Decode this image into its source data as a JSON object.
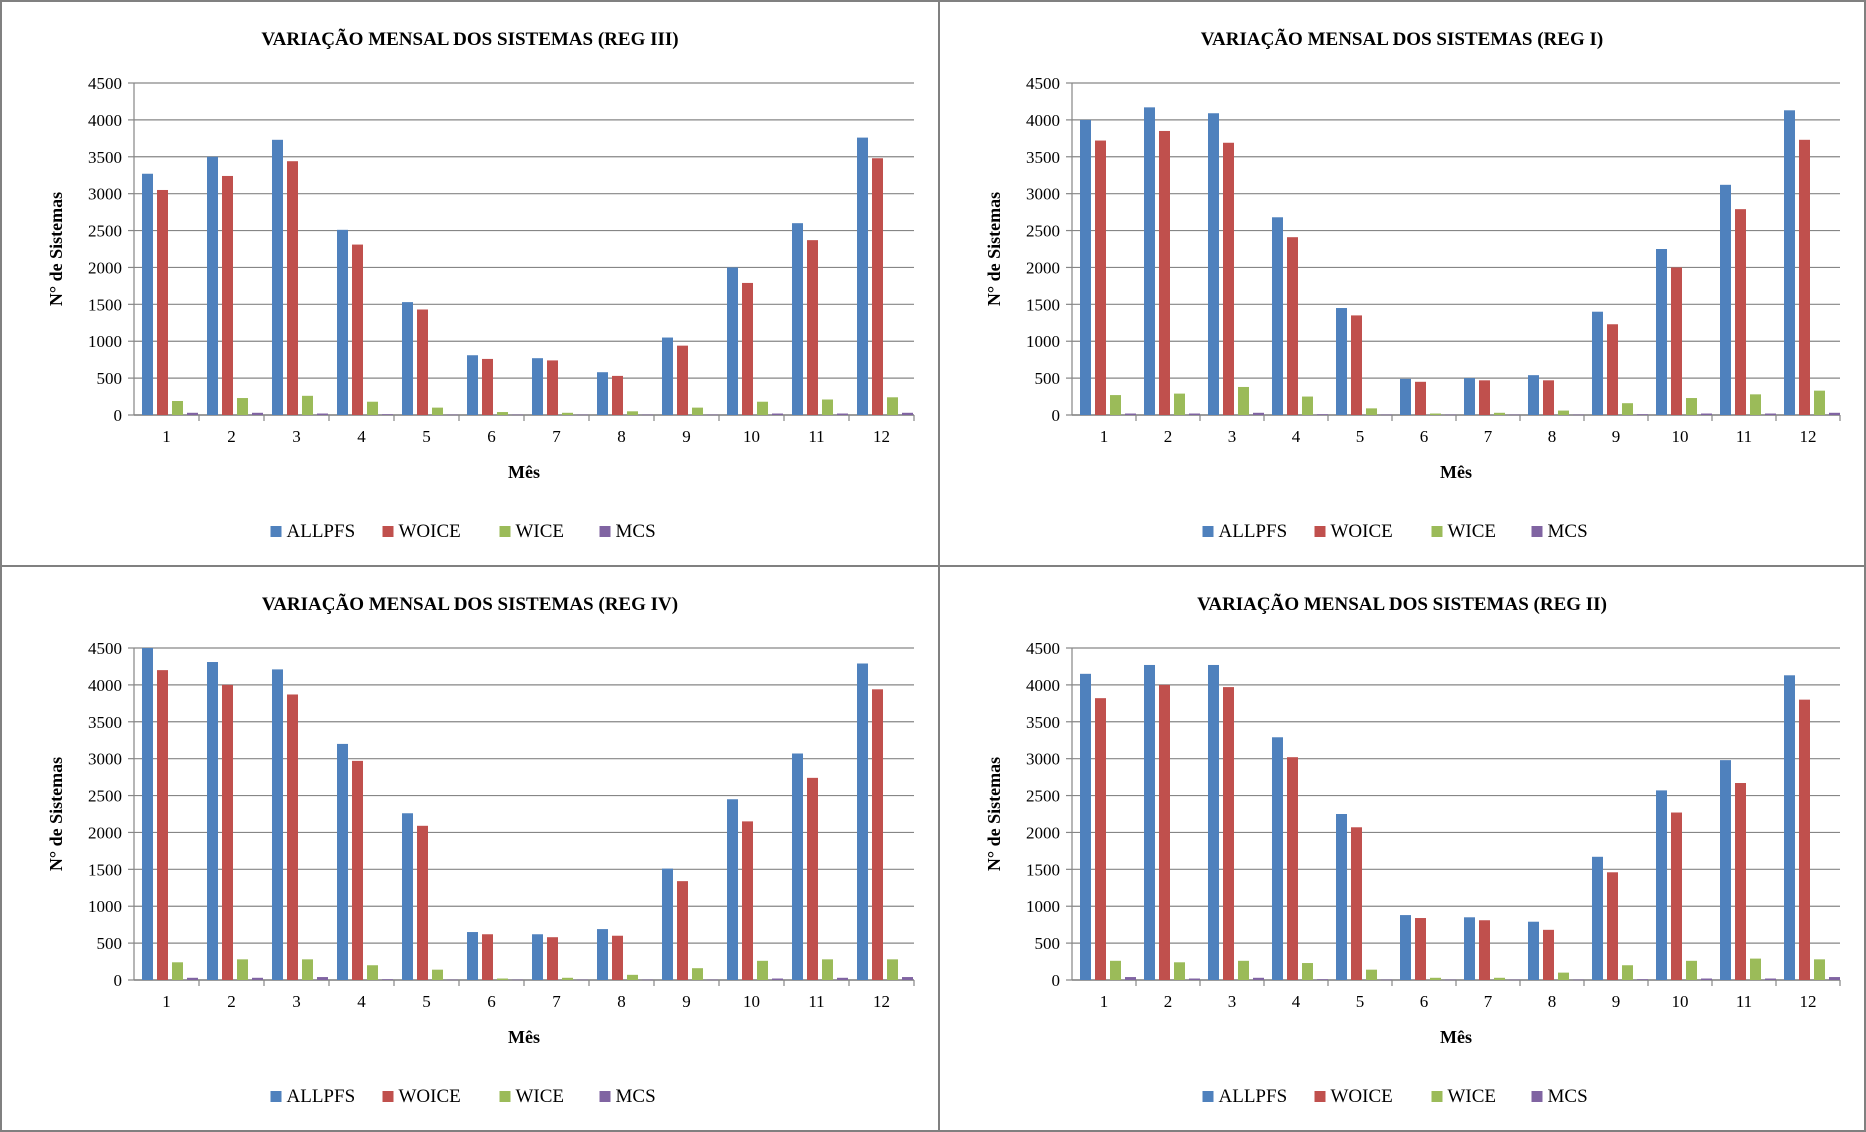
{
  "legend_labels": [
    "ALLPFS",
    "WOICE",
    "WICE",
    "MCS"
  ],
  "series_colors": [
    "#4f81bd",
    "#c0504d",
    "#9bbb59",
    "#8064a2"
  ],
  "chart_data": [
    {
      "type": "bar",
      "title": "VARIAÇÃO MENSAL DOS SISTEMAS (REG III)",
      "xlabel": "Mês",
      "ylabel": "N° de Sistemas",
      "ylim": [
        0,
        4500
      ],
      "yticks": [
        "0",
        "500",
        "1000",
        "1500",
        "2000",
        "2500",
        "3000",
        "3500",
        "4000",
        "4500"
      ],
      "categories": [
        "1",
        "2",
        "3",
        "4",
        "5",
        "6",
        "7",
        "8",
        "9",
        "10",
        "11",
        "12"
      ],
      "grid": true,
      "legend_position": "bottom",
      "series": [
        {
          "name": "ALLPFS",
          "values": [
            3270,
            3500,
            3730,
            2510,
            1530,
            810,
            770,
            580,
            1050,
            2000,
            2600,
            3760
          ]
        },
        {
          "name": "WOICE",
          "values": [
            3050,
            3240,
            3440,
            2310,
            1430,
            760,
            740,
            530,
            940,
            1790,
            2370,
            3480
          ]
        },
        {
          "name": "WICE",
          "values": [
            190,
            230,
            260,
            180,
            100,
            40,
            30,
            50,
            100,
            180,
            210,
            240
          ]
        },
        {
          "name": "MCS",
          "values": [
            30,
            30,
            20,
            10,
            5,
            5,
            5,
            5,
            5,
            20,
            20,
            30
          ]
        }
      ]
    },
    {
      "type": "bar",
      "title": "VARIAÇÃO MENSAL DOS SISTEMAS (REG I)",
      "xlabel": "Mês",
      "ylabel": "N° de Sistemas",
      "ylim": [
        0,
        4500
      ],
      "yticks": [
        "0",
        "500",
        "1000",
        "1500",
        "2000",
        "2500",
        "3000",
        "3500",
        "4000",
        "4500"
      ],
      "categories": [
        "1",
        "2",
        "3",
        "4",
        "5",
        "6",
        "7",
        "8",
        "9",
        "10",
        "11",
        "12"
      ],
      "grid": true,
      "legend_position": "bottom",
      "series": [
        {
          "name": "ALLPFS",
          "values": [
            4000,
            4170,
            4090,
            2680,
            1450,
            490,
            500,
            540,
            1400,
            2250,
            3120,
            4130
          ]
        },
        {
          "name": "WOICE",
          "values": [
            3720,
            3850,
            3690,
            2410,
            1350,
            450,
            470,
            470,
            1230,
            2000,
            2790,
            3730
          ]
        },
        {
          "name": "WICE",
          "values": [
            270,
            290,
            380,
            250,
            90,
            20,
            30,
            60,
            160,
            230,
            280,
            330
          ]
        },
        {
          "name": "MCS",
          "values": [
            20,
            20,
            30,
            10,
            5,
            5,
            5,
            5,
            10,
            20,
            20,
            30
          ]
        }
      ]
    },
    {
      "type": "bar",
      "title": "VARIAÇÃO MENSAL DOS SISTEMAS (REG IV)",
      "xlabel": "Mês",
      "ylabel": "N° de Sistemas",
      "ylim": [
        0,
        4500
      ],
      "yticks": [
        "0",
        "500",
        "1000",
        "1500",
        "2000",
        "2500",
        "3000",
        "3500",
        "4000",
        "4500"
      ],
      "categories": [
        "1",
        "2",
        "3",
        "4",
        "5",
        "6",
        "7",
        "8",
        "9",
        "10",
        "11",
        "12"
      ],
      "grid": true,
      "legend_position": "bottom",
      "series": [
        {
          "name": "ALLPFS",
          "values": [
            4500,
            4310,
            4210,
            3200,
            2260,
            650,
            620,
            690,
            1510,
            2450,
            3070,
            4290
          ]
        },
        {
          "name": "WOICE",
          "values": [
            4200,
            4000,
            3870,
            2970,
            2090,
            620,
            580,
            600,
            1340,
            2150,
            2740,
            3940
          ]
        },
        {
          "name": "WICE",
          "values": [
            240,
            280,
            280,
            200,
            140,
            20,
            30,
            70,
            160,
            260,
            280,
            280
          ]
        },
        {
          "name": "MCS",
          "values": [
            30,
            30,
            40,
            10,
            5,
            5,
            5,
            5,
            5,
            20,
            30,
            40
          ]
        }
      ]
    },
    {
      "type": "bar",
      "title": "VARIAÇÃO MENSAL DOS SISTEMAS (REG II)",
      "xlabel": "Mês",
      "ylabel": "N° de Sistemas",
      "ylim": [
        0,
        4500
      ],
      "yticks": [
        "0",
        "500",
        "1000",
        "1500",
        "2000",
        "2500",
        "3000",
        "3500",
        "4000",
        "4500"
      ],
      "categories": [
        "1",
        "2",
        "3",
        "4",
        "5",
        "6",
        "7",
        "8",
        "9",
        "10",
        "11",
        "12"
      ],
      "grid": true,
      "legend_position": "bottom",
      "series": [
        {
          "name": "ALLPFS",
          "values": [
            4150,
            4270,
            4270,
            3290,
            2250,
            880,
            850,
            790,
            1670,
            2570,
            2980,
            4130
          ]
        },
        {
          "name": "WOICE",
          "values": [
            3820,
            4000,
            3970,
            3020,
            2070,
            840,
            810,
            680,
            1460,
            2270,
            2670,
            3800
          ]
        },
        {
          "name": "WICE",
          "values": [
            260,
            240,
            260,
            230,
            140,
            30,
            30,
            100,
            200,
            260,
            290,
            280
          ]
        },
        {
          "name": "MCS",
          "values": [
            40,
            20,
            30,
            10,
            5,
            5,
            5,
            5,
            10,
            20,
            20,
            40
          ]
        }
      ]
    }
  ]
}
